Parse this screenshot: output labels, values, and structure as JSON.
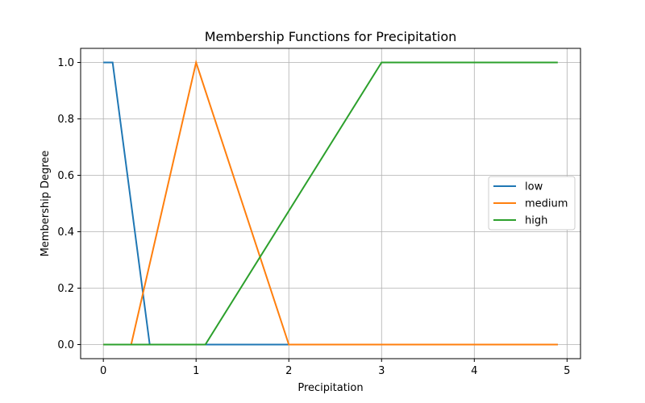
{
  "chart_data": {
    "type": "line",
    "title": "Membership Functions for Precipitation",
    "xlabel": "Precipitation",
    "ylabel": "Membership Degree",
    "xlim": [
      -0.245,
      5.145
    ],
    "ylim": [
      -0.05,
      1.05
    ],
    "xticks": [
      0,
      1,
      2,
      3,
      4,
      5
    ],
    "xtick_labels": [
      "0",
      "1",
      "2",
      "3",
      "4",
      "5"
    ],
    "yticks": [
      0.0,
      0.2,
      0.4,
      0.6,
      0.8,
      1.0
    ],
    "ytick_labels": [
      "0.0",
      "0.2",
      "0.4",
      "0.6",
      "0.8",
      "1.0"
    ],
    "grid": true,
    "legend_position": "center-right",
    "series": [
      {
        "name": "low",
        "color": "#1f77b4",
        "x": [
          0,
          0.1,
          0.5,
          4.9
        ],
        "y": [
          1,
          1,
          0,
          0
        ]
      },
      {
        "name": "medium",
        "color": "#ff7f0e",
        "x": [
          0,
          0.3,
          1.0,
          2.0,
          4.9
        ],
        "y": [
          0,
          0,
          1,
          0,
          0
        ]
      },
      {
        "name": "high",
        "color": "#2ca02c",
        "x": [
          0,
          1.1,
          3.0,
          4.9
        ],
        "y": [
          0,
          0,
          1,
          1
        ]
      }
    ]
  }
}
